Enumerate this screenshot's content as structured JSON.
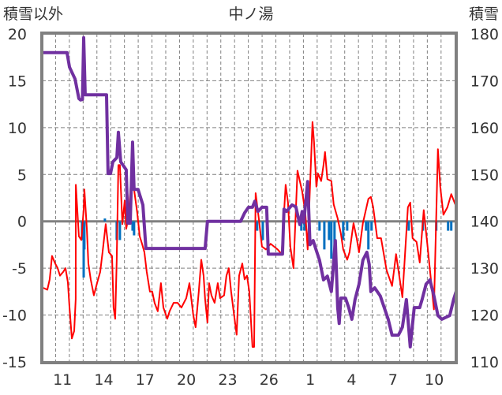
{
  "chart_data": {
    "type": "line",
    "title": "中ノ湯",
    "ylabel": "積雪以外",
    "y2label": "積雪",
    "ylim": [
      -15,
      20
    ],
    "y2lim": [
      110,
      180
    ],
    "yticks": [
      "20",
      "15",
      "10",
      "5",
      "0",
      "-5",
      "-10",
      "-15"
    ],
    "y2ticks": [
      "180",
      "170",
      "160",
      "150",
      "140",
      "130",
      "120",
      "110"
    ],
    "xlim": [
      0,
      30.1
    ],
    "xticks": [
      {
        "t": 1.5,
        "label": "11"
      },
      {
        "t": 4.5,
        "label": "14"
      },
      {
        "t": 7.5,
        "label": "17"
      },
      {
        "t": 10.5,
        "label": "20"
      },
      {
        "t": 13.5,
        "label": "23"
      },
      {
        "t": 16.5,
        "label": "26"
      },
      {
        "t": 19.5,
        "label": "1"
      },
      {
        "t": 22.5,
        "label": "4"
      },
      {
        "t": 25.5,
        "label": "7"
      },
      {
        "t": 28.5,
        "label": "10"
      }
    ],
    "grid": true,
    "colors": {
      "temperature": "#ff0000",
      "snow": "#7030a0",
      "precip": "#0070c0",
      "axis": "#808080"
    },
    "series": [
      {
        "name": "red-line",
        "axis": "left",
        "points": [
          [
            0.11,
            -7.1
          ],
          [
            0.4,
            -7.3
          ],
          [
            0.57,
            -6.2
          ],
          [
            0.74,
            -3.7
          ],
          [
            0.97,
            -4.5
          ],
          [
            1.15,
            -5
          ],
          [
            1.32,
            -5.8
          ],
          [
            1.55,
            -5.4
          ],
          [
            1.72,
            -5
          ],
          [
            1.89,
            -6.5
          ],
          [
            2.01,
            -9.2
          ],
          [
            2.18,
            -12.5
          ],
          [
            2.35,
            -11.7
          ],
          [
            2.46,
            -8.3
          ],
          [
            2.47,
            3.9
          ],
          [
            2.69,
            -1.6
          ],
          [
            2.87,
            -2
          ],
          [
            3.04,
            1.3
          ],
          [
            3.09,
            3.4
          ],
          [
            3.27,
            -0.8
          ],
          [
            3.38,
            -4.5
          ],
          [
            3.55,
            -6.2
          ],
          [
            3.78,
            -7.9
          ],
          [
            4.01,
            -6.6
          ],
          [
            4.24,
            -5.4
          ],
          [
            4.41,
            -3.3
          ],
          [
            4.64,
            -0.3
          ],
          [
            4.87,
            -3.3
          ],
          [
            5.1,
            -3.7
          ],
          [
            5.21,
            -9.2
          ],
          [
            5.33,
            -10.4
          ],
          [
            5.44,
            -4.1
          ],
          [
            5.56,
            6.0
          ],
          [
            5.67,
            6.0
          ],
          [
            5.85,
            -0.3
          ],
          [
            6.02,
            2.2
          ],
          [
            6.13,
            -0.8
          ],
          [
            6.3,
            0.5
          ],
          [
            6.48,
            4.3
          ],
          [
            6.7,
            3.4
          ],
          [
            6.93,
            0.9
          ],
          [
            7.11,
            -1.6
          ],
          [
            7.28,
            -2.4
          ],
          [
            7.45,
            -3.3
          ],
          [
            7.62,
            -5.4
          ],
          [
            7.85,
            -7.5
          ],
          [
            8.02,
            -7.5
          ],
          [
            8.19,
            -8.7
          ],
          [
            8.42,
            -9.6
          ],
          [
            8.65,
            -6.6
          ],
          [
            8.83,
            -9.2
          ],
          [
            9.11,
            -10.4
          ],
          [
            9.28,
            -9.6
          ],
          [
            9.57,
            -8.7
          ],
          [
            9.86,
            -8.7
          ],
          [
            10.14,
            -9.2
          ],
          [
            10.49,
            -8.2
          ],
          [
            10.72,
            -6.6
          ],
          [
            11,
            -10
          ],
          [
            11.17,
            -11.3
          ],
          [
            11.4,
            -7.5
          ],
          [
            11.58,
            -4.1
          ],
          [
            11.75,
            -5.8
          ],
          [
            11.86,
            -8.3
          ],
          [
            12.03,
            -10.8
          ],
          [
            12.15,
            -6.6
          ],
          [
            12.32,
            -7.9
          ],
          [
            12.55,
            -8.7
          ],
          [
            12.78,
            -6.6
          ],
          [
            12.95,
            -8.2
          ],
          [
            13.24,
            -7.9
          ],
          [
            13.41,
            -5.8
          ],
          [
            13.58,
            -5
          ],
          [
            13.75,
            -7.5
          ],
          [
            13.93,
            -9.6
          ],
          [
            14.15,
            -12.1
          ],
          [
            14.33,
            -5.8
          ],
          [
            14.56,
            -4.5
          ],
          [
            14.73,
            -6.2
          ],
          [
            14.9,
            -5.8
          ],
          [
            15.07,
            -7.5
          ],
          [
            15.3,
            -13.4
          ],
          [
            15.42,
            -13.4
          ],
          [
            15.53,
            3.0
          ],
          [
            15.76,
            0.3
          ],
          [
            15.99,
            -2.7
          ],
          [
            16.28,
            -3
          ],
          [
            16.62,
            -2.4
          ],
          [
            17.13,
            -3
          ],
          [
            17.42,
            -3.5
          ],
          [
            17.71,
            3.9
          ],
          [
            17.88,
            2
          ],
          [
            18.05,
            -2.7
          ],
          [
            18.28,
            -5
          ],
          [
            18.57,
            5.4
          ],
          [
            18.74,
            4.3
          ],
          [
            18.91,
            3.2
          ],
          [
            19.14,
            0.9
          ],
          [
            19.31,
            -3
          ],
          [
            19.48,
            3.7
          ],
          [
            19.66,
            10.6
          ],
          [
            19.77,
            8.5
          ],
          [
            19.94,
            3.7
          ],
          [
            20.06,
            5.1
          ],
          [
            20.29,
            4.3
          ],
          [
            20.46,
            6
          ],
          [
            20.57,
            7.4
          ],
          [
            20.74,
            4.5
          ],
          [
            21.03,
            4.3
          ],
          [
            21.2,
            1.8
          ],
          [
            21.49,
            0.3
          ],
          [
            21.72,
            -1.3
          ],
          [
            21.89,
            -3
          ],
          [
            22.18,
            -4.1
          ],
          [
            22.35,
            -3.3
          ],
          [
            22.64,
            -0.2
          ],
          [
            22.87,
            -1.8
          ],
          [
            23.04,
            -3.3
          ],
          [
            23.32,
            -0.2
          ],
          [
            23.72,
            2.4
          ],
          [
            23.9,
            2.6
          ],
          [
            24.07,
            1.5
          ],
          [
            24.36,
            -1.8
          ],
          [
            24.64,
            -1.8
          ],
          [
            25.04,
            -5.2
          ],
          [
            25.44,
            -6.9
          ],
          [
            25.73,
            -3.5
          ],
          [
            26.19,
            -8.1
          ],
          [
            26.59,
            1.5
          ],
          [
            26.76,
            2
          ],
          [
            26.93,
            -1.8
          ],
          [
            27.22,
            -2.2
          ],
          [
            27.45,
            -4.4
          ],
          [
            27.74,
            1.2
          ],
          [
            28.02,
            -2.7
          ],
          [
            28.31,
            -6.9
          ],
          [
            28.48,
            -9.4
          ],
          [
            28.77,
            7.7
          ],
          [
            28.94,
            3.7
          ],
          [
            29.17,
            0.7
          ],
          [
            29.46,
            1.5
          ],
          [
            29.74,
            2.9
          ],
          [
            30.03,
            1.8
          ]
        ]
      },
      {
        "name": "purple-line",
        "axis": "right",
        "points": [
          [
            0,
            176
          ],
          [
            1.83,
            176
          ],
          [
            2.01,
            172.9
          ],
          [
            2.41,
            170.4
          ],
          [
            2.69,
            166.2
          ],
          [
            2.81,
            165.9
          ],
          [
            2.95,
            166
          ],
          [
            3.04,
            179.2
          ],
          [
            3.15,
            167
          ],
          [
            4.7,
            167
          ],
          [
            4.81,
            150.2
          ],
          [
            4.99,
            150.2
          ],
          [
            5.16,
            152.7
          ],
          [
            5.45,
            153.6
          ],
          [
            5.56,
            159
          ],
          [
            5.73,
            152.7
          ],
          [
            6.13,
            151
          ],
          [
            6.25,
            139.6
          ],
          [
            6.42,
            139.6
          ],
          [
            6.59,
            156.9
          ],
          [
            6.7,
            146.8
          ],
          [
            6.99,
            146.8
          ],
          [
            7.34,
            143.5
          ],
          [
            7.56,
            134.2
          ],
          [
            11.86,
            134.2
          ],
          [
            12.03,
            140
          ],
          [
            14.44,
            140
          ],
          [
            14.73,
            141.8
          ],
          [
            15.01,
            143
          ],
          [
            15.3,
            143
          ],
          [
            15.47,
            144.3
          ],
          [
            15.7,
            142.1
          ],
          [
            15.99,
            143
          ],
          [
            16.33,
            143
          ],
          [
            16.45,
            133
          ],
          [
            17.48,
            133
          ],
          [
            17.59,
            142.6
          ],
          [
            17.77,
            142.1
          ],
          [
            18.17,
            143.5
          ],
          [
            18.45,
            143.1
          ],
          [
            18.74,
            139.3
          ],
          [
            18.91,
            142.1
          ],
          [
            19.03,
            139.8
          ],
          [
            19.31,
            148.5
          ],
          [
            19.48,
            135
          ],
          [
            19.71,
            135.9
          ],
          [
            19.89,
            134.2
          ],
          [
            20.17,
            131.7
          ],
          [
            20.46,
            127.5
          ],
          [
            20.74,
            128.3
          ],
          [
            21.03,
            125
          ],
          [
            21.32,
            135.9
          ],
          [
            21.49,
            121.6
          ],
          [
            21.6,
            118.2
          ],
          [
            21.72,
            123.6
          ],
          [
            22.06,
            123.6
          ],
          [
            22.29,
            121.6
          ],
          [
            22.52,
            119.1
          ],
          [
            22.75,
            123.3
          ],
          [
            23.04,
            126.6
          ],
          [
            23.32,
            131.7
          ],
          [
            23.61,
            133.4
          ],
          [
            23.78,
            130.8
          ],
          [
            23.9,
            125
          ],
          [
            24.18,
            125.8
          ],
          [
            24.58,
            124.1
          ],
          [
            24.87,
            121.6
          ],
          [
            25.16,
            119.1
          ],
          [
            25.44,
            115.7
          ],
          [
            25.9,
            115.7
          ],
          [
            26.19,
            117.4
          ],
          [
            26.48,
            123.3
          ],
          [
            26.76,
            113.2
          ],
          [
            27.05,
            121.6
          ],
          [
            27.45,
            121.6
          ],
          [
            27.62,
            123.3
          ],
          [
            27.91,
            126.6
          ],
          [
            28.19,
            127.5
          ],
          [
            28.48,
            124.1
          ],
          [
            28.77,
            119.9
          ],
          [
            29.05,
            119.1
          ],
          [
            29.63,
            119.9
          ],
          [
            29.91,
            123.3
          ],
          [
            30.09,
            125
          ]
        ]
      },
      {
        "name": "blue-bars",
        "axis": "left",
        "type": "bar",
        "points": [
          [
            2.92,
            -2
          ],
          [
            3.04,
            -6
          ],
          [
            3.09,
            -3
          ],
          [
            4.58,
            0.3
          ],
          [
            5.44,
            -2
          ],
          [
            5.67,
            -2
          ],
          [
            6.59,
            -1
          ],
          [
            6.7,
            -1.5
          ],
          [
            15.64,
            -1
          ],
          [
            16.05,
            -2
          ],
          [
            17.54,
            -1
          ],
          [
            18.85,
            -1
          ],
          [
            19.08,
            -1
          ],
          [
            20.17,
            -1
          ],
          [
            20.52,
            -3
          ],
          [
            20.86,
            -2
          ],
          [
            21.03,
            -4
          ],
          [
            21.26,
            -3
          ],
          [
            21.89,
            -2
          ],
          [
            22.18,
            -1
          ],
          [
            23.55,
            -1
          ],
          [
            23.72,
            -3
          ],
          [
            23.95,
            -1
          ],
          [
            26.65,
            -1
          ],
          [
            27.68,
            -1
          ],
          [
            28.65,
            -1
          ],
          [
            29.51,
            -1
          ],
          [
            29.74,
            -1
          ]
        ]
      }
    ]
  }
}
